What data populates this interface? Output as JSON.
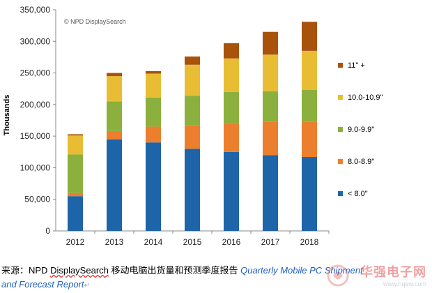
{
  "chart_data": {
    "type": "bar",
    "stacked": true,
    "categories": [
      "2012",
      "2013",
      "2014",
      "2015",
      "2016",
      "2017",
      "2018"
    ],
    "series": [
      {
        "name": "< 8.0\"",
        "color": "#1e64a8",
        "values": [
          55000,
          145000,
          140000,
          130000,
          125000,
          120000,
          117000
        ]
      },
      {
        "name": "8.0-8.9\"",
        "color": "#ec7f2d",
        "values": [
          5000,
          13000,
          25000,
          37000,
          46000,
          53000,
          56000
        ]
      },
      {
        "name": "9.0-9.9\"",
        "color": "#8bb03d",
        "values": [
          61000,
          47000,
          46000,
          47000,
          49000,
          48000,
          50000
        ]
      },
      {
        "name": "10.0-10.9\"",
        "color": "#e8bd33",
        "values": [
          30000,
          40000,
          38000,
          49000,
          53000,
          58000,
          62000
        ]
      },
      {
        "name": "11\" +",
        "color": "#a8520c",
        "values": [
          2000,
          5000,
          4000,
          13000,
          24000,
          36000,
          46000
        ]
      }
    ],
    "ylabel": "Thousands",
    "ylim": [
      0,
      350000
    ],
    "yticks": [
      "0",
      "50,000",
      "100,000",
      "150,000",
      "200,000",
      "250,000",
      "300,000",
      "350,000"
    ],
    "grid": false,
    "legend_placement": "right",
    "annotation": "© NPD DisplaySearch"
  },
  "caption": {
    "prefix": "来源：NPD ",
    "source_name": "DisplaySearch",
    "middle": " 移动电脑出货量和预测季度报告 ",
    "report_title_line1": "Quarterly Mobile PC Shipment",
    "report_title_line2": "and Forecast Report"
  },
  "watermark": {
    "name": "华强电子网",
    "url": "www.hqew.com"
  }
}
